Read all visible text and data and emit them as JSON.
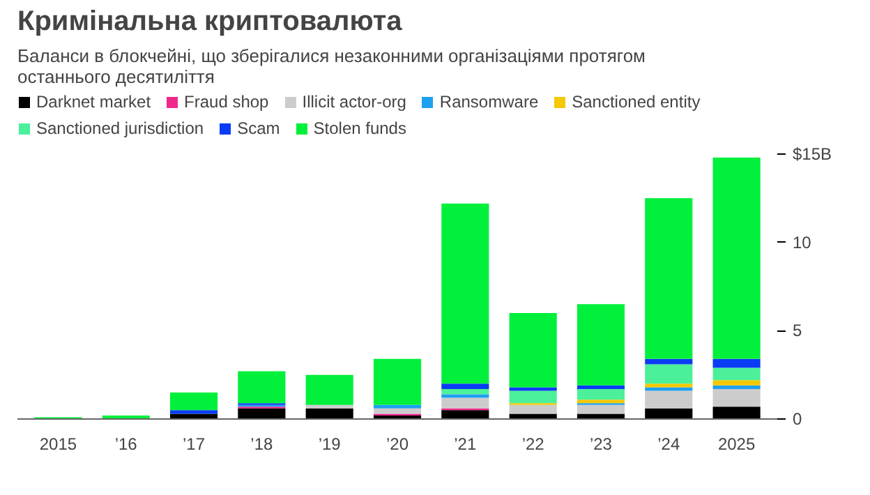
{
  "chart_data": {
    "type": "bar",
    "stacked": true,
    "title": "Кримінальна криптовалюта",
    "subtitle": "Баланси в блокчейні, що зберігалися незаконними організаціями протягом останнього десятиліття",
    "categories": [
      "2015",
      "’16",
      "’17",
      "’18",
      "’19",
      "’20",
      "’21",
      "’22",
      "’23",
      "’24",
      "2025"
    ],
    "series": [
      {
        "name": "Darknet market",
        "color": "#000000",
        "values": [
          0,
          0,
          0.3,
          0.6,
          0.6,
          0.2,
          0.5,
          0.3,
          0.3,
          0.6,
          0.7
        ]
      },
      {
        "name": "Fraud shop",
        "color": "#f0288c",
        "values": [
          0,
          0,
          0,
          0.1,
          0,
          0.1,
          0.1,
          0,
          0,
          0,
          0
        ]
      },
      {
        "name": "Illicit actor-org",
        "color": "#cccccc",
        "values": [
          0,
          0,
          0,
          0,
          0.2,
          0.3,
          0.6,
          0.5,
          0.5,
          1.0,
          1.0
        ]
      },
      {
        "name": "Ransomware",
        "color": "#1ea0f0",
        "values": [
          0,
          0,
          0,
          0.1,
          0,
          0.2,
          0.2,
          0,
          0.1,
          0.2,
          0.2
        ]
      },
      {
        "name": "Sanctioned entity",
        "color": "#f5c800",
        "values": [
          0,
          0,
          0,
          0,
          0,
          0,
          0,
          0.1,
          0.2,
          0.2,
          0.3
        ]
      },
      {
        "name": "Sanctioned jurisdiction",
        "color": "#4cf09a",
        "values": [
          0,
          0,
          0,
          0,
          0,
          0,
          0.3,
          0.7,
          0.6,
          1.1,
          0.7
        ]
      },
      {
        "name": "Scam",
        "color": "#0a3cf5",
        "values": [
          0,
          0,
          0.2,
          0.1,
          0,
          0,
          0.3,
          0.2,
          0.2,
          0.3,
          0.5
        ]
      },
      {
        "name": "Stolen funds",
        "color": "#00f03c",
        "values": [
          0.1,
          0.2,
          1.0,
          1.8,
          1.7,
          2.6,
          10.2,
          4.2,
          4.6,
          9.1,
          11.4
        ]
      }
    ],
    "ylim": [
      0,
      15
    ],
    "yticks": [
      0,
      5,
      10,
      {
        "value": 15,
        "label": "$15B"
      }
    ],
    "grid": false,
    "legend": "top"
  }
}
